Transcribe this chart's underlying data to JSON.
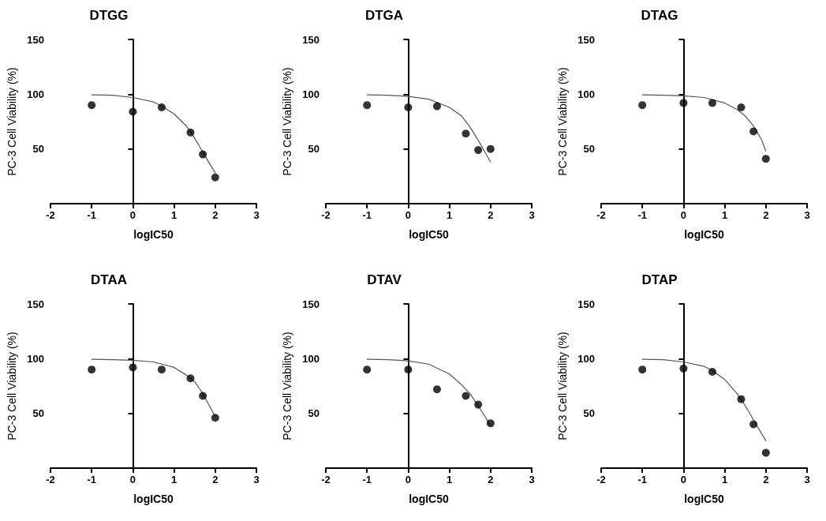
{
  "chart_data": [
    {
      "type": "scatter",
      "title": "DTGG",
      "xlabel": "logIC50",
      "ylabel": "PC-3 Cell Viability (%)",
      "xlim": [
        -2,
        3
      ],
      "xticks": [
        -2,
        -1,
        0,
        1,
        2,
        3
      ],
      "ylim": [
        0,
        150
      ],
      "yticks": [
        50,
        100,
        150
      ],
      "series": [
        {
          "type": "scatter",
          "color": "#000000",
          "marker": "circle",
          "x": [
            -1,
            0,
            0.7,
            1.4,
            1.7,
            2
          ],
          "values": [
            90,
            84,
            88,
            65,
            45,
            24
          ]
        },
        {
          "type": "line",
          "color": "#555555",
          "marker": "none",
          "line_style": "solid",
          "x": [
            -1,
            -0.5,
            0,
            0.5,
            0.7,
            1,
            1.3,
            1.5,
            1.7,
            2
          ],
          "values": [
            99.5,
            99,
            97,
            93,
            89,
            82,
            71,
            60,
            47,
            28
          ]
        }
      ]
    },
    {
      "type": "scatter",
      "title": "DTGA",
      "xlabel": "logIC50",
      "ylabel": "PC-3 Cell Viability (%)",
      "xlim": [
        -2,
        3
      ],
      "xticks": [
        -2,
        -1,
        0,
        1,
        2,
        3
      ],
      "ylim": [
        0,
        150
      ],
      "yticks": [
        50,
        100,
        150
      ],
      "series": [
        {
          "type": "scatter",
          "color": "#000000",
          "marker": "circle",
          "x": [
            -1,
            0,
            0.7,
            1.4,
            1.7,
            2
          ],
          "values": [
            90,
            88,
            89,
            64,
            49,
            50
          ]
        },
        {
          "type": "line",
          "color": "#555555",
          "marker": "none",
          "line_style": "solid",
          "x": [
            -1,
            -0.5,
            0,
            0.5,
            1,
            1.3,
            1.5,
            1.7,
            2
          ],
          "values": [
            99.5,
            99,
            98,
            95.5,
            88,
            80,
            70,
            58,
            38
          ]
        }
      ]
    },
    {
      "type": "scatter",
      "title": "DTAG",
      "xlabel": "logIC50",
      "ylabel": "PC-3 Cell Viability (%)",
      "xlim": [
        -2,
        3
      ],
      "xticks": [
        -2,
        -1,
        0,
        1,
        2,
        3
      ],
      "ylim": [
        0,
        150
      ],
      "yticks": [
        50,
        100,
        150
      ],
      "series": [
        {
          "type": "scatter",
          "color": "#000000",
          "marker": "circle",
          "x": [
            -1,
            0,
            0.7,
            1.4,
            1.7,
            2
          ],
          "values": [
            90,
            92,
            92,
            88,
            66,
            41
          ]
        },
        {
          "type": "line",
          "color": "#555555",
          "marker": "none",
          "line_style": "solid",
          "x": [
            -1,
            -0.5,
            0,
            0.5,
            1,
            1.3,
            1.5,
            1.7,
            1.9,
            2
          ],
          "values": [
            99.5,
            99,
            98.5,
            97,
            92,
            86,
            80,
            71,
            58,
            48
          ]
        }
      ]
    },
    {
      "type": "scatter",
      "title": "DTAA",
      "xlabel": "logIC50",
      "ylabel": "PC-3 Cell Viability (%)",
      "xlim": [
        -2,
        3
      ],
      "xticks": [
        -2,
        -1,
        0,
        1,
        2,
        3
      ],
      "ylim": [
        0,
        150
      ],
      "yticks": [
        50,
        100,
        150
      ],
      "series": [
        {
          "type": "scatter",
          "color": "#000000",
          "marker": "circle",
          "x": [
            -1,
            0,
            0.7,
            1.4,
            1.7,
            2
          ],
          "values": [
            90,
            92,
            90,
            82,
            66,
            46
          ]
        },
        {
          "type": "line",
          "color": "#555555",
          "marker": "none",
          "line_style": "solid",
          "x": [
            -1,
            -0.5,
            0,
            0.5,
            1,
            1.3,
            1.5,
            1.7,
            2
          ],
          "values": [
            99.5,
            99,
            98.5,
            97,
            92,
            85,
            79,
            68,
            47
          ]
        }
      ]
    },
    {
      "type": "scatter",
      "title": "DTAV",
      "xlabel": "logIC50",
      "ylabel": "PC-3 Cell Viability (%)",
      "xlim": [
        -2,
        3
      ],
      "xticks": [
        -2,
        -1,
        0,
        1,
        2,
        3
      ],
      "ylim": [
        0,
        150
      ],
      "yticks": [
        50,
        100,
        150
      ],
      "series": [
        {
          "type": "scatter",
          "color": "#000000",
          "marker": "circle",
          "x": [
            -1,
            0,
            0.7,
            1.4,
            1.7,
            2
          ],
          "values": [
            90,
            90,
            72,
            66,
            58,
            41
          ]
        },
        {
          "type": "line",
          "color": "#555555",
          "marker": "none",
          "line_style": "solid",
          "x": [
            -1,
            -0.5,
            0,
            0.5,
            1,
            1.3,
            1.5,
            1.7,
            2
          ],
          "values": [
            99.5,
            99,
            98,
            95,
            86,
            76,
            68,
            57,
            39
          ]
        }
      ]
    },
    {
      "type": "scatter",
      "title": "DTAP",
      "xlabel": "logIC50",
      "ylabel": "PC-3 Cell Viability (%)",
      "xlim": [
        -2,
        3
      ],
      "xticks": [
        -2,
        -1,
        0,
        1,
        2,
        3
      ],
      "ylim": [
        0,
        150
      ],
      "yticks": [
        50,
        100,
        150
      ],
      "series": [
        {
          "type": "scatter",
          "color": "#000000",
          "marker": "circle",
          "x": [
            -1,
            0,
            0.7,
            1.4,
            1.7,
            2
          ],
          "values": [
            90,
            91,
            88,
            63,
            40,
            14
          ]
        },
        {
          "type": "line",
          "color": "#555555",
          "marker": "none",
          "line_style": "solid",
          "x": [
            -1,
            -0.5,
            0,
            0.5,
            0.7,
            1,
            1.3,
            1.5,
            1.7,
            2
          ],
          "values": [
            99.5,
            99,
            97,
            93,
            89,
            81,
            68,
            57,
            44,
            25
          ]
        }
      ]
    }
  ]
}
